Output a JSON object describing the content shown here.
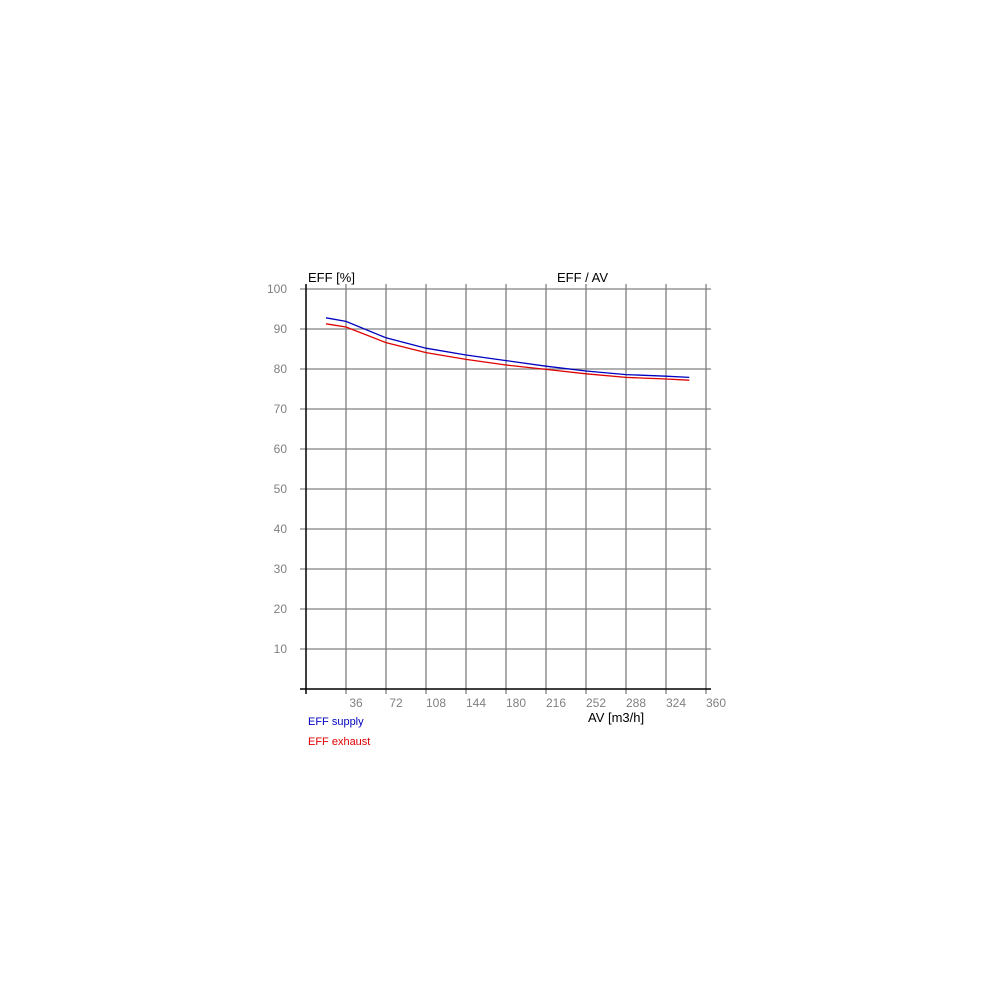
{
  "chart_data": {
    "type": "line",
    "title": "EFF / AV",
    "xlabel": "AV [m3/h]",
    "ylabel": "EFF [%]",
    "xlim": [
      0,
      360
    ],
    "ylim": [
      0,
      100
    ],
    "xticks": [
      36,
      72,
      108,
      144,
      180,
      216,
      252,
      288,
      324,
      360
    ],
    "yticks": [
      10,
      20,
      30,
      40,
      50,
      60,
      70,
      80,
      90,
      100
    ],
    "grid": true,
    "legend_position": "bottom-left",
    "x": [
      18,
      36,
      72,
      108,
      144,
      180,
      216,
      252,
      288,
      324,
      345
    ],
    "series": [
      {
        "name": "EFF supply",
        "color": "#0000c0",
        "values": [
          92.8,
          91.9,
          87.8,
          85.2,
          83.5,
          82.1,
          80.7,
          79.5,
          78.6,
          78.2,
          77.9
        ]
      },
      {
        "name": "EFF exhaust",
        "color": "#e00000",
        "values": [
          91.3,
          90.5,
          86.6,
          84.1,
          82.4,
          81.0,
          79.9,
          78.8,
          77.9,
          77.5,
          77.2
        ]
      }
    ]
  }
}
